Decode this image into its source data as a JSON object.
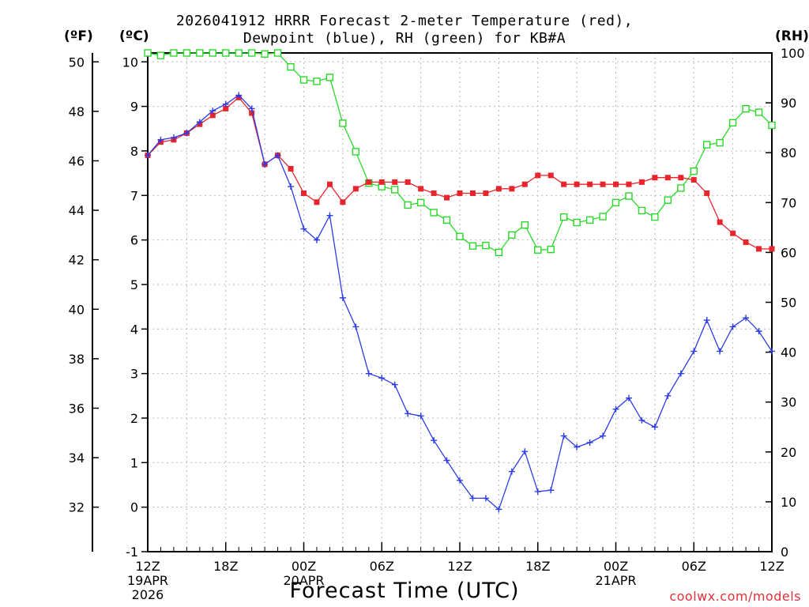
{
  "title_line1": "2026041912 HRRR Forecast 2-meter Temperature (red),",
  "title_line2": "Dewpoint (blue), RH (green) for KB#A",
  "left_outer_unit": "(ºF)",
  "left_inner_unit": "(ºC)",
  "right_unit": "(RH)",
  "credit": "coolwx.com/models",
  "chart_data": {
    "type": "line",
    "title": "2026041912 HRRR Forecast 2-meter Temperature (red), Dewpoint (blue), RH (green) for KB#A",
    "xlabel": "Forecast Time (UTC)",
    "x_hours": [
      0,
      1,
      2,
      3,
      4,
      5,
      6,
      7,
      8,
      9,
      10,
      11,
      12,
      13,
      14,
      15,
      16,
      17,
      18,
      19,
      20,
      21,
      22,
      23,
      24,
      25,
      26,
      27,
      28,
      29,
      30,
      31,
      32,
      33,
      34,
      35,
      36,
      37,
      38,
      39,
      40,
      41,
      42,
      43,
      44,
      45,
      46,
      47,
      48
    ],
    "x_ticks": [
      {
        "hour": 0,
        "labels": [
          "12Z",
          "19APR",
          "2026"
        ]
      },
      {
        "hour": 6,
        "labels": [
          "18Z"
        ]
      },
      {
        "hour": 12,
        "labels": [
          "00Z",
          "20APR"
        ]
      },
      {
        "hour": 18,
        "labels": [
          "06Z"
        ]
      },
      {
        "hour": 24,
        "labels": [
          "12Z"
        ]
      },
      {
        "hour": 30,
        "labels": [
          "18Z"
        ]
      },
      {
        "hour": 36,
        "labels": [
          "00Z",
          "21APR"
        ]
      },
      {
        "hour": 42,
        "labels": [
          "06Z"
        ]
      },
      {
        "hour": 48,
        "labels": [
          "12Z"
        ]
      }
    ],
    "celsius_axis": {
      "range": [
        -1,
        10.2
      ],
      "ticks": [
        -1,
        0,
        1,
        2,
        3,
        4,
        5,
        6,
        7,
        8,
        9,
        10
      ]
    },
    "fahrenheit_axis": {
      "ticks": [
        32,
        34,
        36,
        38,
        40,
        42,
        44,
        46,
        48,
        50
      ]
    },
    "rh_axis": {
      "range": [
        0,
        100
      ],
      "ticks": [
        0,
        10,
        20,
        30,
        40,
        50,
        60,
        70,
        80,
        90,
        100
      ]
    },
    "series": [
      {
        "name": "Temperature",
        "axis": "C",
        "color": "#e8252d",
        "marker": "filled-square",
        "values": [
          7.9,
          8.2,
          8.25,
          8.4,
          8.6,
          8.8,
          8.95,
          9.2,
          8.85,
          7.7,
          7.9,
          7.6,
          7.05,
          6.85,
          7.25,
          6.85,
          7.15,
          7.3,
          7.3,
          7.3,
          7.3,
          7.15,
          7.05,
          6.95,
          7.05,
          7.05,
          7.05,
          7.15,
          7.15,
          7.25,
          7.45,
          7.45,
          7.25,
          7.25,
          7.25,
          7.25,
          7.25,
          7.25,
          7.3,
          7.4,
          7.4,
          7.4,
          7.35,
          7.05,
          6.4,
          6.15,
          5.95,
          5.8,
          5.8
        ]
      },
      {
        "name": "Dewpoint",
        "axis": "C",
        "color": "#2c3ce8",
        "marker": "plus",
        "values": [
          7.9,
          8.25,
          8.3,
          8.4,
          8.65,
          8.9,
          9.05,
          9.25,
          8.95,
          7.7,
          7.9,
          7.2,
          6.25,
          6.0,
          6.55,
          4.7,
          4.05,
          3.0,
          2.9,
          2.75,
          2.1,
          2.05,
          1.5,
          1.05,
          0.6,
          0.2,
          0.2,
          -0.05,
          0.8,
          1.25,
          0.35,
          0.38,
          1.6,
          1.35,
          1.45,
          1.6,
          2.2,
          2.45,
          1.95,
          1.8,
          2.5,
          3.0,
          3.5,
          4.2,
          3.5,
          4.05,
          4.25,
          3.95,
          3.5
        ]
      },
      {
        "name": "RH",
        "axis": "RH",
        "color": "#2ad82a",
        "marker": "open-square",
        "values": [
          100,
          99.5,
          100,
          100,
          100,
          100,
          100,
          100,
          100,
          99.8,
          100,
          97.2,
          94.6,
          94.3,
          95.1,
          85.9,
          80.2,
          73.9,
          73.2,
          72.6,
          69.5,
          70,
          68,
          66.5,
          63.2,
          61.3,
          61.4,
          60,
          63.5,
          65.5,
          60.5,
          60.6,
          67.1,
          66,
          66.5,
          67.2,
          70,
          71.3,
          68.4,
          67.1,
          70.5,
          72.9,
          76.3,
          81.6,
          82,
          86,
          88.8,
          88.1,
          85.5
        ]
      }
    ]
  }
}
